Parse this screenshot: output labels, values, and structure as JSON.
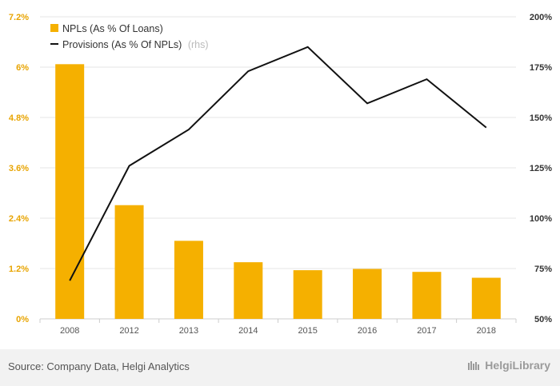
{
  "chart_data": {
    "type": "bar+line",
    "categories": [
      "2008",
      "2012",
      "2013",
      "2014",
      "2015",
      "2016",
      "2017",
      "2018"
    ],
    "series": [
      {
        "name": "NPLs (As % Of Loans)",
        "type": "bar",
        "axis": "left",
        "color": "#f5b000",
        "values": [
          6.07,
          2.71,
          1.86,
          1.35,
          1.16,
          1.19,
          1.12,
          0.98
        ]
      },
      {
        "name": "Provisions (As % Of NPLs)",
        "name_suffix": "(rhs)",
        "type": "line",
        "axis": "right",
        "color": "#111111",
        "values": [
          69,
          126,
          144,
          173,
          185,
          157,
          169,
          145
        ]
      }
    ],
    "left_axis": {
      "range": [
        0,
        7.2
      ],
      "ticks": [
        0,
        1.2,
        2.4,
        3.6,
        4.8,
        6.0,
        7.2
      ],
      "tick_labels": [
        "0%",
        "1.2%",
        "2.4%",
        "3.6%",
        "4.8%",
        "6%",
        "7.2%"
      ]
    },
    "right_axis": {
      "range": [
        50,
        200
      ],
      "ticks": [
        50,
        75,
        100,
        125,
        150,
        175,
        200
      ],
      "tick_labels": [
        "50%",
        "75%",
        "100%",
        "125%",
        "150%",
        "175%",
        "200%"
      ]
    },
    "grid": true,
    "legend_position": "top-left"
  },
  "footer": {
    "source": "Source: Company Data, Helgi Analytics",
    "brand": "HelgiLibrary"
  }
}
